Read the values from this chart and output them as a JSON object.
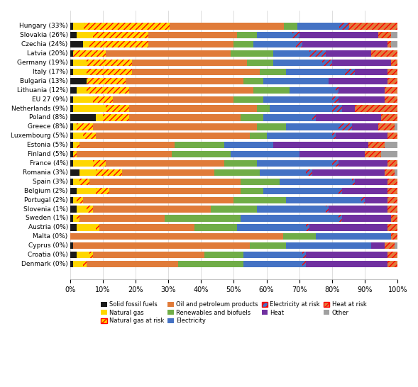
{
  "countries": [
    "Hungary (33%)",
    "Slovakia (26%)",
    "Czechia (24%)",
    "Latvia (20%)",
    "Germany (19%)",
    "Italy (17%)",
    "Bulgaria (13%)",
    "Lithuania (12%)",
    "EU 27 (9%)",
    "Netherlands (9%)",
    "Poland (8%)",
    "Greece (8%)",
    "Luxembourg (5%)",
    "Estonia (5%)",
    "Finland (5%)",
    "France (4%)",
    "Romania (3%)",
    "Spain (3%)",
    "Belgium (2%)",
    "Portugal (2%)",
    "Slovenia (1%)",
    "Sweden (1%)",
    "Austria (0%)",
    "Malta (0%)",
    "Cyprus (0%)",
    "Croatia (0%)",
    "Denmark (0%)"
  ],
  "categories": [
    "Solid fossil fuels",
    "Natural gas",
    "Natural gas at risk",
    "Oil and petroleum products",
    "Renewables and biofuels",
    "Electricity",
    "Electricity at risk",
    "Heat",
    "Heat at risk",
    "Other"
  ],
  "cat_base_colors": [
    "#1a1a1a",
    "#ffd700",
    "#ffd700",
    "#e07b39",
    "#70ad47",
    "#4472c4",
    "#4472c4",
    "#7030a0",
    "#e07b39",
    "#a0a0a0"
  ],
  "cat_hatch": [
    false,
    false,
    true,
    false,
    false,
    false,
    true,
    false,
    true,
    false
  ],
  "data": [
    [
      1,
      3,
      25,
      33,
      4,
      12,
      3,
      0,
      14,
      0
    ],
    [
      2,
      5,
      17,
      27,
      6,
      11,
      2,
      24,
      4,
      2
    ],
    [
      4,
      2,
      18,
      26,
      6,
      13,
      2,
      26,
      1,
      2
    ],
    [
      1,
      0,
      10,
      38,
      13,
      11,
      5,
      14,
      8,
      0
    ],
    [
      1,
      4,
      14,
      35,
      8,
      15,
      3,
      18,
      2,
      0
    ],
    [
      1,
      4,
      14,
      39,
      8,
      18,
      3,
      10,
      3,
      0
    ],
    [
      5,
      0,
      12,
      36,
      6,
      20,
      0,
      18,
      3,
      0
    ],
    [
      2,
      3,
      13,
      38,
      11,
      14,
      1,
      14,
      4,
      0
    ],
    [
      1,
      6,
      6,
      37,
      9,
      21,
      2,
      14,
      4,
      0
    ],
    [
      1,
      10,
      7,
      39,
      4,
      19,
      3,
      4,
      13,
      0
    ],
    [
      8,
      2,
      8,
      34,
      7,
      15,
      1,
      20,
      5,
      0
    ],
    [
      1,
      1,
      5,
      50,
      9,
      16,
      4,
      8,
      5,
      1
    ],
    [
      1,
      3,
      4,
      47,
      5,
      20,
      1,
      16,
      3,
      0
    ],
    [
      1,
      1,
      1,
      29,
      15,
      15,
      0,
      29,
      5,
      4
    ],
    [
      1,
      0,
      1,
      29,
      18,
      21,
      0,
      20,
      5,
      5
    ],
    [
      1,
      6,
      4,
      36,
      10,
      23,
      2,
      15,
      3,
      0
    ],
    [
      3,
      5,
      8,
      28,
      14,
      14,
      2,
      22,
      3,
      1
    ],
    [
      1,
      2,
      3,
      46,
      12,
      22,
      1,
      10,
      3,
      0
    ],
    [
      2,
      6,
      4,
      40,
      7,
      23,
      1,
      14,
      3,
      0
    ],
    [
      1,
      1,
      2,
      46,
      16,
      23,
      1,
      7,
      3,
      0
    ],
    [
      2,
      3,
      2,
      36,
      14,
      21,
      1,
      18,
      3,
      0
    ],
    [
      1,
      1,
      1,
      26,
      23,
      30,
      1,
      15,
      2,
      0
    ],
    [
      2,
      6,
      1,
      29,
      13,
      21,
      1,
      24,
      3,
      0
    ],
    [
      0,
      0,
      0,
      65,
      10,
      23,
      0,
      0,
      2,
      0
    ],
    [
      1,
      0,
      0,
      54,
      11,
      26,
      0,
      4,
      3,
      1
    ],
    [
      2,
      4,
      1,
      34,
      12,
      18,
      1,
      25,
      3,
      0
    ],
    [
      1,
      3,
      1,
      28,
      20,
      18,
      1,
      25,
      3,
      0
    ]
  ],
  "legend_order": [
    [
      0,
      "Solid fossil fuels",
      "#1a1a1a",
      false
    ],
    [
      1,
      "Natural gas",
      "#ffd700",
      false
    ],
    [
      2,
      "Natural gas at risk",
      "#ffd700",
      true
    ],
    [
      3,
      "Oil and petroleum products",
      "#e07b39",
      false
    ],
    [
      4,
      "Renewables and biofuels",
      "#70ad47",
      false
    ],
    [
      5,
      "Electricity",
      "#4472c4",
      false
    ],
    [
      6,
      "Electricity at risk",
      "#4472c4",
      true
    ],
    [
      7,
      "Heat",
      "#7030a0",
      false
    ],
    [
      8,
      "Heat at risk",
      "#e07b39",
      true
    ],
    [
      9,
      "Other",
      "#a0a0a0",
      false
    ]
  ]
}
